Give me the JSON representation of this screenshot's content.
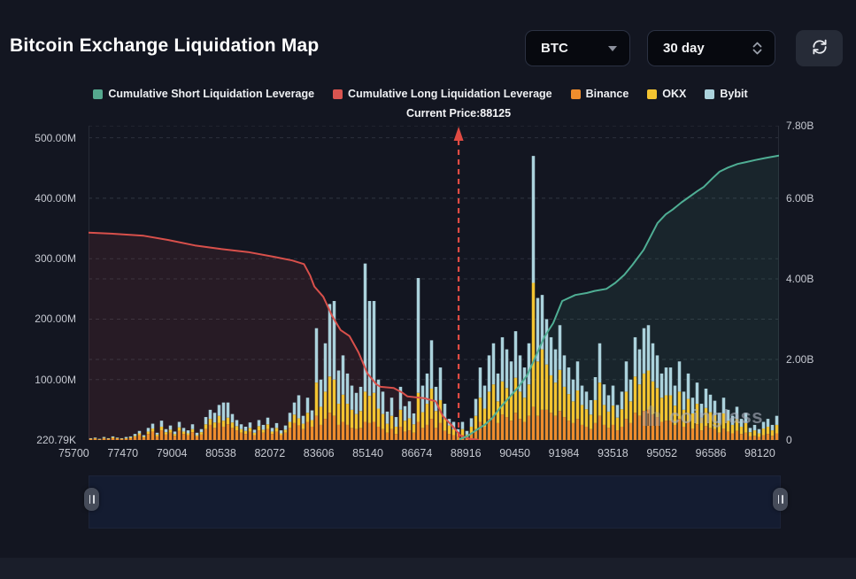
{
  "header": {
    "title": "Bitcoin Exchange Liquidation Map"
  },
  "controls": {
    "symbol_select": {
      "value": "BTC"
    },
    "range_select": {
      "value": "30 day"
    }
  },
  "legend": {
    "items": [
      {
        "label": "Cumulative Short Liquidation Leverage",
        "color": "#55a88e"
      },
      {
        "label": "Cumulative Long Liquidation Leverage",
        "color": "#da5550"
      },
      {
        "label": "Binance",
        "color": "#ee8d2d"
      },
      {
        "label": "OKX",
        "color": "#f3c431"
      },
      {
        "label": "Bybit",
        "color": "#abd2dc"
      }
    ]
  },
  "current_price_label": "Current Price:88125",
  "watermark_text": "coinglass",
  "colors": {
    "background": "#131621",
    "short_line": "#4fae94",
    "short_fill": "rgba(79,174,148,0.10)",
    "long_line": "#d8504b",
    "long_fill": "rgba(216,80,75,0.10)",
    "binance": "#ee8d2d",
    "okx": "#f3c431",
    "bybit": "#abd2dc",
    "grid": "#2d313d",
    "price_line": "#e04b43",
    "axis_text": "#c6c9d1"
  },
  "chart_data": {
    "type": "bar",
    "title": "Bitcoin Exchange Liquidation Map",
    "legend_position": "top",
    "grid": true,
    "x_axis": {
      "tick_labels": [
        "75700",
        "77470",
        "79004",
        "80538",
        "82072",
        "83606",
        "85140",
        "86674",
        "88916",
        "90450",
        "91984",
        "93518",
        "95052",
        "96586",
        "98120"
      ],
      "current_price": 88125,
      "current_price_frac": 0.536
    },
    "y_axis_left": {
      "unit": "M",
      "max": 520,
      "ticks": [
        {
          "label": "500.00M",
          "value": 500
        },
        {
          "label": "400.00M",
          "value": 400
        },
        {
          "label": "300.00M",
          "value": 300
        },
        {
          "label": "200.00M",
          "value": 200
        },
        {
          "label": "100.00M",
          "value": 100
        },
        {
          "label": "220.79K",
          "value": 0.22
        }
      ],
      "grid_values": [
        100,
        200,
        300,
        400,
        500
      ]
    },
    "y_axis_right": {
      "unit": "B",
      "max": 7.8,
      "ticks": [
        {
          "label": "7.80B",
          "value": 7.8
        },
        {
          "label": "6.00B",
          "value": 6.0
        },
        {
          "label": "4.00B",
          "value": 4.0
        },
        {
          "label": "2.00B",
          "value": 2.0
        },
        {
          "label": "0",
          "value": 0
        }
      ],
      "grid_values": [
        2,
        4,
        6,
        7.8
      ]
    },
    "series": [
      {
        "name": "Cumulative Long Liquidation Leverage",
        "type": "line",
        "axis": "left",
        "unit": "M",
        "points": [
          [
            0,
            343
          ],
          [
            0.04,
            341
          ],
          [
            0.08,
            338
          ],
          [
            0.115,
            331
          ],
          [
            0.154,
            322
          ],
          [
            0.192,
            316
          ],
          [
            0.231,
            311
          ],
          [
            0.269,
            303
          ],
          [
            0.295,
            297
          ],
          [
            0.312,
            291
          ],
          [
            0.321,
            272
          ],
          [
            0.327,
            254
          ],
          [
            0.34,
            237
          ],
          [
            0.353,
            205
          ],
          [
            0.365,
            182
          ],
          [
            0.378,
            172
          ],
          [
            0.391,
            145
          ],
          [
            0.404,
            110
          ],
          [
            0.417,
            92
          ],
          [
            0.423,
            88
          ],
          [
            0.442,
            86
          ],
          [
            0.455,
            78
          ],
          [
            0.462,
            72
          ],
          [
            0.487,
            69
          ],
          [
            0.503,
            64
          ],
          [
            0.513,
            40
          ],
          [
            0.528,
            22
          ],
          [
            0.538,
            8
          ],
          [
            0.551,
            2
          ],
          [
            0.564,
            0.3
          ]
        ]
      },
      {
        "name": "Cumulative Short Liquidation Leverage",
        "type": "line",
        "axis": "right",
        "unit": "B",
        "points": [
          [
            0.538,
            0.02
          ],
          [
            0.549,
            0.1
          ],
          [
            0.562,
            0.25
          ],
          [
            0.574,
            0.38
          ],
          [
            0.585,
            0.55
          ],
          [
            0.596,
            0.8
          ],
          [
            0.609,
            1.05
          ],
          [
            0.622,
            1.3
          ],
          [
            0.635,
            1.6
          ],
          [
            0.647,
            2.05
          ],
          [
            0.66,
            2.55
          ],
          [
            0.673,
            2.9
          ],
          [
            0.686,
            3.45
          ],
          [
            0.705,
            3.6
          ],
          [
            0.722,
            3.65
          ],
          [
            0.733,
            3.7
          ],
          [
            0.75,
            3.75
          ],
          [
            0.763,
            3.9
          ],
          [
            0.776,
            4.1
          ],
          [
            0.788,
            4.35
          ],
          [
            0.804,
            4.72
          ],
          [
            0.814,
            5.05
          ],
          [
            0.824,
            5.38
          ],
          [
            0.836,
            5.6
          ],
          [
            0.846,
            5.72
          ],
          [
            0.859,
            5.9
          ],
          [
            0.869,
            6.02
          ],
          [
            0.882,
            6.18
          ],
          [
            0.891,
            6.28
          ],
          [
            0.904,
            6.5
          ],
          [
            0.914,
            6.66
          ],
          [
            0.926,
            6.76
          ],
          [
            0.94,
            6.85
          ],
          [
            0.953,
            6.9
          ],
          [
            0.966,
            6.95
          ],
          [
            0.981,
            7.0
          ],
          [
            1,
            7.06
          ]
        ]
      },
      {
        "name": "Exchange Liquidation Bars",
        "type": "bar",
        "axis": "left",
        "unit": "M",
        "stack_order": [
          "Binance",
          "OKX",
          "Bybit"
        ],
        "values": [
          [
            1.5,
            0.8,
            0.7
          ],
          [
            2,
            1,
            1
          ],
          [
            1,
            0.5,
            0.5
          ],
          [
            2.5,
            1,
            1.5
          ],
          [
            1.5,
            1,
            0.5
          ],
          [
            3,
            1.5,
            1.5
          ],
          [
            2,
            1,
            1
          ],
          [
            1.5,
            0.8,
            0.7
          ],
          [
            2,
            1,
            2
          ],
          [
            3,
            1.5,
            1.5
          ],
          [
            5,
            2,
            3
          ],
          [
            8,
            3,
            4
          ],
          [
            4,
            2,
            2
          ],
          [
            10,
            4,
            6
          ],
          [
            14,
            5,
            8
          ],
          [
            6,
            3,
            3
          ],
          [
            16,
            6,
            10
          ],
          [
            9,
            4,
            5
          ],
          [
            12,
            5,
            7
          ],
          [
            7,
            3,
            4
          ],
          [
            15,
            6,
            9
          ],
          [
            10,
            4,
            6
          ],
          [
            8,
            3,
            5
          ],
          [
            13,
            5,
            8
          ],
          [
            6,
            2,
            4
          ],
          [
            9,
            4,
            5
          ],
          [
            18,
            8,
            12
          ],
          [
            25,
            10,
            15
          ],
          [
            20,
            9,
            16
          ],
          [
            28,
            12,
            18
          ],
          [
            22,
            10,
            30
          ],
          [
            26,
            11,
            25
          ],
          [
            20,
            9,
            14
          ],
          [
            16,
            7,
            10
          ],
          [
            12,
            6,
            8
          ],
          [
            10,
            5,
            7
          ],
          [
            14,
            6,
            9
          ],
          [
            8,
            4,
            5
          ],
          [
            16,
            7,
            10
          ],
          [
            12,
            5,
            8
          ],
          [
            18,
            8,
            11
          ],
          [
            10,
            4,
            6
          ],
          [
            14,
            6,
            8
          ],
          [
            8,
            3,
            5
          ],
          [
            12,
            5,
            7
          ],
          [
            20,
            10,
            15
          ],
          [
            28,
            14,
            20
          ],
          [
            24,
            12,
            38
          ],
          [
            18,
            9,
            13
          ],
          [
            30,
            15,
            25
          ],
          [
            22,
            11,
            16
          ],
          [
            40,
            55,
            90
          ],
          [
            25,
            30,
            45
          ],
          [
            35,
            45,
            80
          ],
          [
            45,
            60,
            120
          ],
          [
            40,
            60,
            130
          ],
          [
            25,
            35,
            55
          ],
          [
            30,
            45,
            65
          ],
          [
            25,
            35,
            50
          ],
          [
            20,
            30,
            40
          ],
          [
            18,
            25,
            35
          ],
          [
            20,
            28,
            40
          ],
          [
            30,
            50,
            212
          ],
          [
            28,
            45,
            157
          ],
          [
            30,
            48,
            152
          ],
          [
            22,
            30,
            48
          ],
          [
            18,
            25,
            37
          ],
          [
            12,
            15,
            20
          ],
          [
            18,
            22,
            30
          ],
          [
            10,
            12,
            16
          ],
          [
            22,
            28,
            38
          ],
          [
            14,
            18,
            24
          ],
          [
            16,
            20,
            28
          ],
          [
            12,
            14,
            18
          ],
          [
            30,
            48,
            190
          ],
          [
            20,
            26,
            44
          ],
          [
            25,
            35,
            50
          ],
          [
            35,
            50,
            80
          ],
          [
            20,
            28,
            40
          ],
          [
            28,
            38,
            54
          ],
          [
            15,
            20,
            25
          ],
          [
            10,
            14,
            11
          ],
          [
            8,
            10,
            12
          ],
          [
            5,
            6,
            7
          ],
          [
            8,
            10,
            12
          ],
          [
            4,
            5,
            6
          ],
          [
            10,
            12,
            14
          ],
          [
            18,
            22,
            28
          ],
          [
            30,
            40,
            50
          ],
          [
            22,
            30,
            38
          ],
          [
            35,
            45,
            60
          ],
          [
            40,
            52,
            68
          ],
          [
            28,
            36,
            46
          ],
          [
            42,
            55,
            73
          ],
          [
            38,
            48,
            64
          ],
          [
            32,
            42,
            56
          ],
          [
            45,
            58,
            77
          ],
          [
            35,
            45,
            60
          ],
          [
            30,
            40,
            50
          ],
          [
            40,
            52,
            68
          ],
          [
            55,
            205,
            210
          ],
          [
            40,
            90,
            105
          ],
          [
            50,
            100,
            90
          ],
          [
            50,
            75,
            75
          ],
          [
            45,
            62,
            63
          ],
          [
            40,
            55,
            55
          ],
          [
            48,
            68,
            74
          ],
          [
            38,
            50,
            52
          ],
          [
            32,
            44,
            44
          ],
          [
            28,
            36,
            36
          ],
          [
            35,
            47,
            48
          ],
          [
            25,
            33,
            32
          ],
          [
            22,
            29,
            29
          ],
          [
            18,
            24,
            24
          ],
          [
            28,
            38,
            38
          ],
          [
            40,
            55,
            65
          ],
          [
            25,
            33,
            34
          ],
          [
            20,
            27,
            27
          ],
          [
            25,
            32,
            33
          ],
          [
            16,
            21,
            21
          ],
          [
            22,
            29,
            29
          ],
          [
            35,
            45,
            50
          ],
          [
            28,
            36,
            36
          ],
          [
            45,
            60,
            65
          ],
          [
            40,
            52,
            58
          ],
          [
            48,
            62,
            75
          ],
          [
            50,
            65,
            75
          ],
          [
            42,
            55,
            63
          ],
          [
            38,
            48,
            54
          ],
          [
            30,
            40,
            40
          ],
          [
            32,
            42,
            46
          ],
          [
            32,
            42,
            46
          ],
          [
            25,
            32,
            33
          ],
          [
            35,
            45,
            50
          ],
          [
            22,
            28,
            30
          ],
          [
            30,
            38,
            42
          ],
          [
            19,
            25,
            26
          ],
          [
            26,
            34,
            35
          ],
          [
            16,
            21,
            23
          ],
          [
            23,
            30,
            32
          ],
          [
            20,
            26,
            29
          ],
          [
            18,
            23,
            24
          ],
          [
            12,
            16,
            17
          ],
          [
            19,
            25,
            26
          ],
          [
            14,
            18,
            18
          ],
          [
            11,
            14,
            15
          ],
          [
            15,
            20,
            20
          ],
          [
            10,
            12,
            13
          ],
          [
            12,
            16,
            17
          ],
          [
            6,
            7,
            7
          ],
          [
            7,
            9,
            9
          ],
          [
            5,
            6,
            7
          ],
          [
            8,
            11,
            11
          ],
          [
            10,
            12,
            13
          ],
          [
            7,
            9,
            9
          ],
          [
            11,
            14,
            15
          ]
        ]
      }
    ]
  }
}
